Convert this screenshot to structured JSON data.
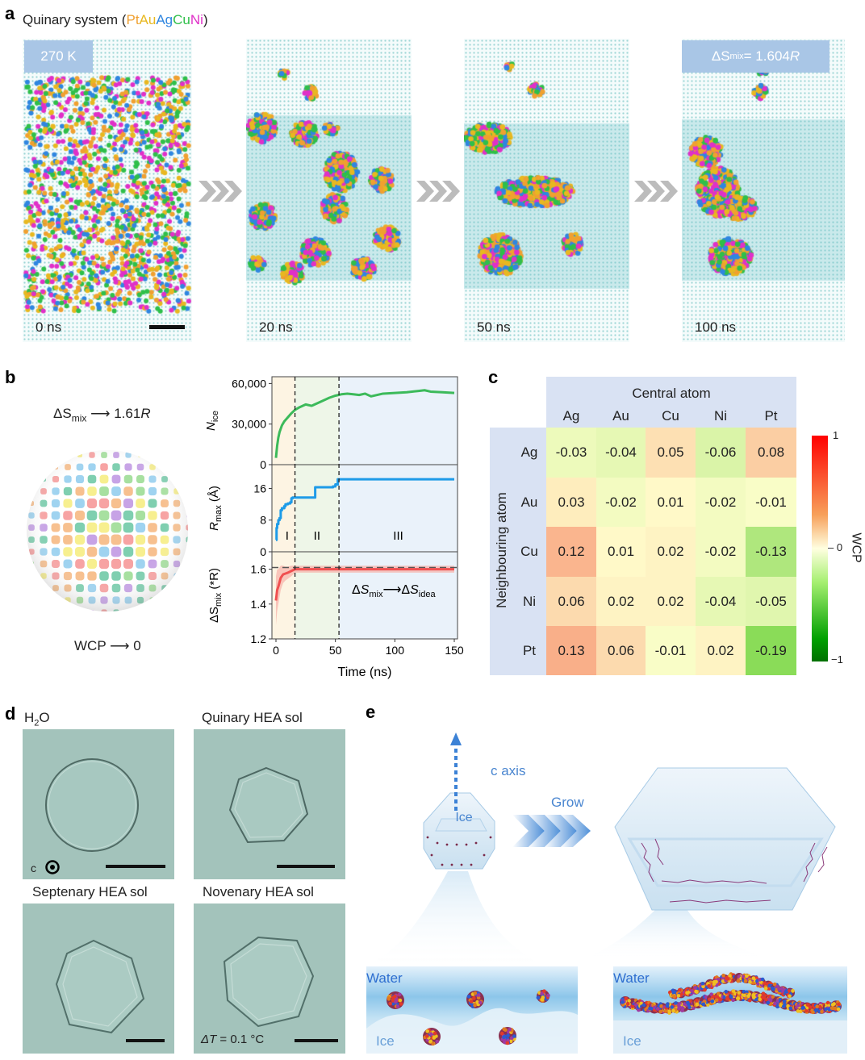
{
  "panel_a": {
    "label": "a",
    "title_prefix": "Quinary system (",
    "title_suffix": ")",
    "elements": [
      {
        "name": "Pt",
        "color": "#f0a030"
      },
      {
        "name": "Au",
        "color": "#e8b820"
      },
      {
        "name": "Ag",
        "color": "#2f86e0"
      },
      {
        "name": "Cu",
        "color": "#2fbf4a"
      },
      {
        "name": "Ni",
        "color": "#e030c8"
      }
    ],
    "temperature_tag": "270 K",
    "entropy_tag": {
      "prefix": "ΔS",
      "sub": "mix",
      "suffix": " = 1.604",
      "unit": "R"
    },
    "snapshots": [
      {
        "time": "0 ns"
      },
      {
        "time": "20 ns"
      },
      {
        "time": "50 ns"
      },
      {
        "time": "100 ns"
      }
    ]
  },
  "panel_b": {
    "label": "b",
    "top_text": {
      "prefix": "ΔS",
      "sub": "mix",
      "value": "1.61",
      "unit": "R"
    },
    "bottom_text": {
      "prefix": "WCP",
      "value": "0"
    },
    "sphere_colors": [
      "#f7a3a3",
      "#a7e0a0",
      "#f7ef8f",
      "#9fd3f0",
      "#f7c08f",
      "#c7a3e6",
      "#7fcfb0"
    ]
  },
  "chart_data": {
    "type": "line",
    "xlabel": "Time (ns)",
    "xlim": [
      0,
      150
    ],
    "xticks": [
      0,
      50,
      100,
      150
    ],
    "stage_boundaries": [
      16,
      53
    ],
    "stages": [
      "I",
      "II",
      "III"
    ],
    "stage_colors": [
      "#fdf4e3",
      "#eef6e8",
      "#eaf2fa"
    ],
    "annotation": {
      "a": "ΔS",
      "a_sub": "mix",
      "b": "ΔS",
      "b_sub": "idea"
    },
    "subplots": [
      {
        "name": "N_ice",
        "ylabel": "N",
        "ylabel_sub": "ice",
        "ylim": [
          0,
          65000
        ],
        "yticks": [
          0,
          30000,
          60000
        ],
        "ytick_labels": [
          "0",
          "30,000",
          "60,000"
        ],
        "color": "#3cba5a",
        "x": [
          0,
          1,
          2,
          3,
          5,
          7,
          9,
          11,
          13,
          16,
          20,
          25,
          30,
          35,
          40,
          45,
          50,
          55,
          60,
          65,
          70,
          75,
          80,
          90,
          100,
          110,
          120,
          125,
          130,
          140,
          150
        ],
        "y": [
          5000,
          14000,
          20000,
          24000,
          29000,
          32000,
          34000,
          36000,
          38000,
          40500,
          42500,
          44500,
          43500,
          45500,
          47500,
          49500,
          51000,
          52000,
          52500,
          52000,
          51500,
          52500,
          50500,
          52500,
          53000,
          53500,
          54500,
          55000,
          54000,
          53500,
          53000
        ]
      },
      {
        "name": "R_max",
        "ylabel": "R",
        "ylabel_sub": "max",
        "ylabel_suffix": " (Å)",
        "ylim": [
          0,
          22
        ],
        "yticks": [
          0,
          8,
          16
        ],
        "ytick_labels": [
          "0",
          "8",
          "16"
        ],
        "color": "#1e9be8",
        "step": true,
        "x": [
          0,
          0.5,
          1,
          2,
          3,
          4,
          5,
          7,
          8,
          10,
          12,
          13,
          14,
          32,
          33,
          48,
          50,
          52,
          150
        ],
        "y": [
          3,
          6,
          7,
          8,
          8.5,
          10.5,
          11,
          11.5,
          12,
          12.2,
          12.5,
          13.5,
          13.7,
          13.7,
          16.3,
          16.5,
          17,
          18.3,
          18.3
        ]
      },
      {
        "name": "dS_mix",
        "ylabel": "ΔS",
        "ylabel_sub": "mix",
        "ylabel_suffix": " (*R)",
        "ylim": [
          1.2,
          1.7
        ],
        "yticks": [
          1.2,
          1.4,
          1.6
        ],
        "ytick_labels": [
          "1.2",
          "1.4",
          "1.6"
        ],
        "color": "#f05050",
        "band_color": "#f7b0a8",
        "ideal": 1.61,
        "x": [
          0,
          1,
          2,
          4,
          6,
          8,
          10,
          13,
          16,
          20,
          50,
          100,
          150
        ],
        "y": [
          1.42,
          1.48,
          1.5,
          1.55,
          1.57,
          1.575,
          1.58,
          1.59,
          1.6,
          1.6,
          1.6,
          1.6,
          1.6
        ],
        "band": [
          0.14,
          0.12,
          0.1,
          0.07,
          0.05,
          0.04,
          0.035,
          0.03,
          0.02,
          0.02,
          0.02,
          0.02,
          0.02
        ]
      }
    ]
  },
  "panel_c": {
    "label": "c",
    "col_title": "Central atom",
    "row_title": "Neighbouring atom",
    "columns": [
      "Ag",
      "Au",
      "Cu",
      "Ni",
      "Pt"
    ],
    "rows": [
      "Ag",
      "Au",
      "Cu",
      "Ni",
      "Pt"
    ],
    "values": [
      [
        "-0.03",
        "-0.04",
        "0.05",
        "-0.06",
        "0.08"
      ],
      [
        "0.03",
        "-0.02",
        "0.01",
        "-0.02",
        "-0.01"
      ],
      [
        "0.12",
        "0.01",
        "0.02",
        "-0.02",
        "-0.13"
      ],
      [
        "0.06",
        "0.02",
        "0.02",
        "-0.04",
        "-0.05"
      ],
      [
        "0.13",
        "0.06",
        "-0.01",
        "0.02",
        "-0.19"
      ]
    ],
    "colorbar": {
      "title": "WCP",
      "max": "1",
      "mid": "0",
      "min": "−1"
    }
  },
  "panel_d": {
    "label": "d",
    "images": [
      {
        "title": "H",
        "title_sub": "2",
        "title_suffix": "O",
        "shape": "circle",
        "axis_label": "c"
      },
      {
        "title": "Quinary HEA sol",
        "shape": "hexagon"
      },
      {
        "title": "Septenary HEA sol",
        "shape": "hexagon"
      },
      {
        "title": "Novenary HEA sol",
        "shape": "hexagon",
        "note_prefix": "ΔT",
        "note": " = 0.1 °C"
      }
    ]
  },
  "panel_e": {
    "label": "e",
    "axis_label": "c axis",
    "ice_label": "Ice",
    "grow_label": "Grow",
    "left_inset": {
      "top": "Water",
      "bottom": "Ice"
    },
    "right_inset": {
      "top": "Water",
      "bottom": "Ice"
    }
  }
}
